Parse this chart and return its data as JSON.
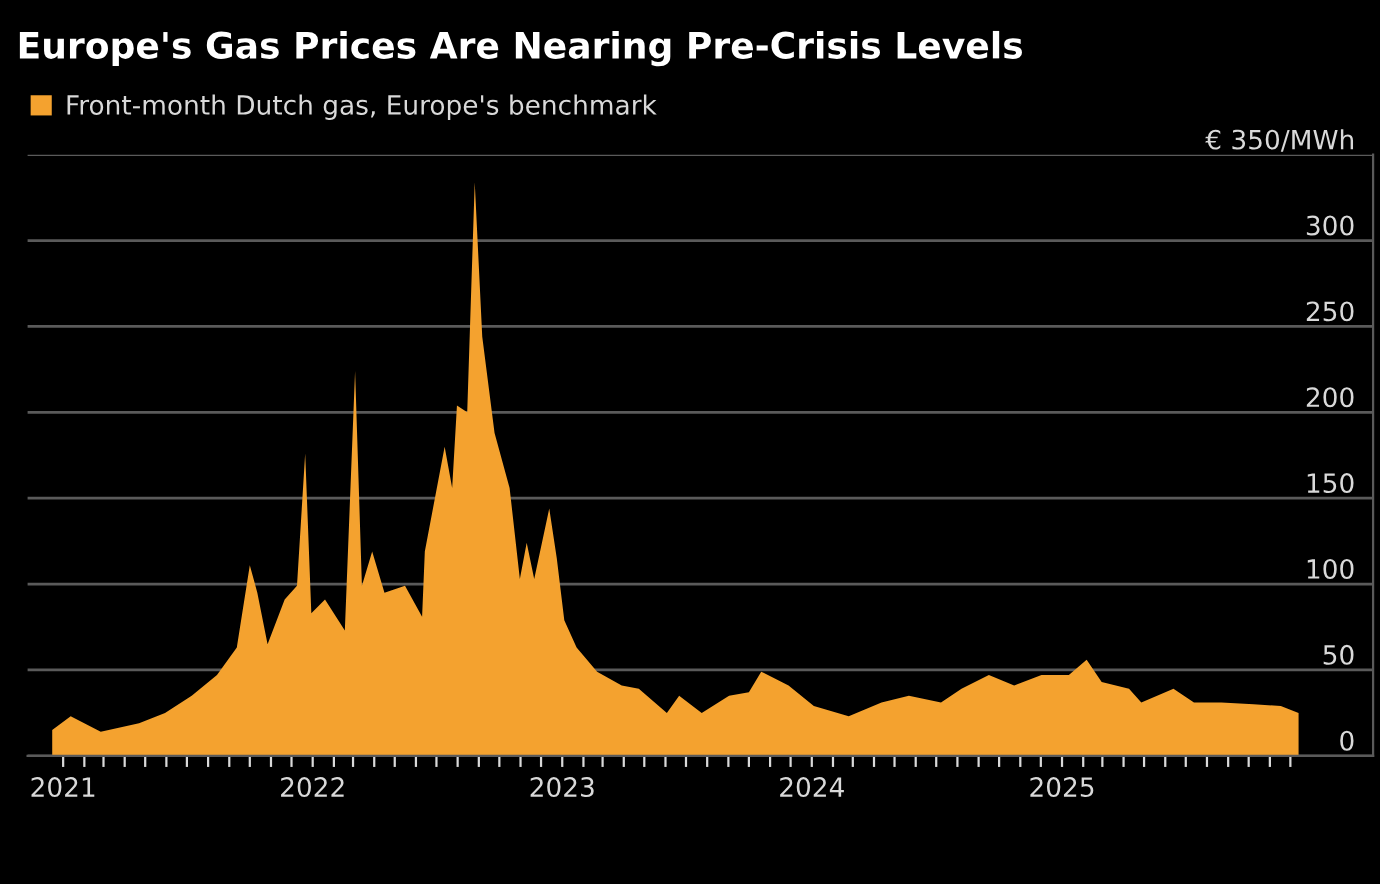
{
  "chart_data": {
    "type": "area",
    "title": "Europe's Gas Prices Are Nearing Pre-Crisis Levels",
    "series": [
      {
        "name": "Front-month Dutch gas, Europe's benchmark",
        "color": "#f4a22f",
        "x": [
          "2020-12-16",
          "2021-01-12",
          "2021-02-25",
          "2021-04-22",
          "2021-05-30",
          "2021-07-08",
          "2021-08-14",
          "2021-09-12",
          "2021-10-01",
          "2021-10-12",
          "2021-10-27",
          "2021-11-21",
          "2021-12-09",
          "2021-12-21",
          "2021-12-30",
          "2022-01-19",
          "2022-02-17",
          "2022-03-04",
          "2022-03-14",
          "2022-03-29",
          "2022-04-16",
          "2022-05-16",
          "2022-06-10",
          "2022-06-14",
          "2022-07-13",
          "2022-07-24",
          "2022-07-31",
          "2022-08-15",
          "2022-08-26",
          "2022-09-06",
          "2022-09-24",
          "2022-10-16",
          "2022-10-31",
          "2022-11-10",
          "2022-11-21",
          "2022-12-13",
          "2022-12-24",
          "2023-01-04",
          "2023-01-22",
          "2023-02-21",
          "2023-03-29",
          "2023-04-23",
          "2023-06-03",
          "2023-06-21",
          "2023-07-24",
          "2023-09-02",
          "2023-10-01",
          "2023-10-19",
          "2023-11-28",
          "2024-01-04",
          "2024-02-24",
          "2024-04-12",
          "2024-05-22",
          "2024-07-08",
          "2024-08-07",
          "2024-09-16",
          "2024-10-23",
          "2024-12-02",
          "2025-01-11",
          "2025-02-06",
          "2025-02-28",
          "2025-04-09",
          "2025-04-27",
          "2025-06-13",
          "2025-07-13",
          "2025-08-22",
          "2025-10-08",
          "2025-11-17",
          "2025-12-13"
        ],
        "values": [
          15,
          23,
          14,
          19,
          25,
          35,
          47,
          63,
          111,
          95,
          65,
          91,
          99,
          176,
          83,
          91,
          73,
          224,
          99,
          119,
          95,
          99,
          81,
          119,
          180,
          156,
          204,
          200,
          334,
          244,
          188,
          156,
          103,
          124,
          103,
          144,
          115,
          79,
          63,
          49,
          41,
          39,
          25,
          35,
          25,
          35,
          37,
          49,
          41,
          29,
          23,
          31,
          35,
          31,
          39,
          47,
          41,
          47,
          47,
          56,
          43,
          39,
          31,
          39,
          31,
          31,
          30,
          29,
          25
        ]
      }
    ],
    "xlim": [
      "2020-11-10",
      "2026-04-01"
    ],
    "xticks": [
      "2021",
      {
        "value": "2021-02",
        "label": null
      },
      {
        "value": "2021-03",
        "label": null
      },
      {
        "value": "2021-04",
        "label": null
      },
      {
        "value": "2021-05",
        "label": null
      },
      {
        "value": "2021-06",
        "label": null
      },
      {
        "value": "2021-07",
        "label": null
      },
      {
        "value": "2021-08",
        "label": null
      },
      {
        "value": "2021-09",
        "label": null
      },
      {
        "value": "2021-10",
        "label": null
      },
      {
        "value": "2021-11",
        "label": null
      },
      {
        "value": "2021-12",
        "label": null
      },
      "2022",
      {
        "value": "2022-02",
        "label": null
      },
      {
        "value": "2022-03",
        "label": null
      },
      {
        "value": "2022-04",
        "label": null
      },
      {
        "value": "2022-05",
        "label": null
      },
      {
        "value": "2022-06",
        "label": null
      },
      {
        "value": "2022-07",
        "label": null
      },
      {
        "value": "2022-08",
        "label": null
      },
      {
        "value": "2022-09",
        "label": null
      },
      {
        "value": "2022-10",
        "label": null
      },
      {
        "value": "2022-11",
        "label": null
      },
      {
        "value": "2022-12",
        "label": null
      },
      "2023",
      {
        "value": "2023-02",
        "label": null
      },
      {
        "value": "2023-03",
        "label": null
      },
      {
        "value": "2023-04",
        "label": null
      },
      {
        "value": "2023-05",
        "label": null
      },
      {
        "value": "2023-06",
        "label": null
      },
      {
        "value": "2023-07",
        "label": null
      },
      {
        "value": "2023-08",
        "label": null
      },
      {
        "value": "2023-09",
        "label": null
      },
      {
        "value": "2023-10",
        "label": null
      },
      {
        "value": "2023-11",
        "label": null
      },
      {
        "value": "2023-12",
        "label": null
      },
      "2024",
      {
        "value": "2024-02",
        "label": null
      },
      {
        "value": "2024-03",
        "label": null
      },
      {
        "value": "2024-04",
        "label": null
      },
      {
        "value": "2024-05",
        "label": null
      },
      {
        "value": "2024-06",
        "label": null
      },
      {
        "value": "2024-07",
        "label": null
      },
      {
        "value": "2024-08",
        "label": null
      },
      {
        "value": "2024-09",
        "label": null
      },
      {
        "value": "2024-10",
        "label": null
      },
      {
        "value": "2024-11",
        "label": null
      },
      {
        "value": "2024-12",
        "label": null
      },
      "2025",
      {
        "value": "2025-02",
        "label": null
      },
      {
        "value": "2025-03",
        "label": null
      },
      {
        "value": "2025-04",
        "label": null
      },
      {
        "value": "2025-05",
        "label": null
      },
      {
        "value": "2025-06",
        "label": null
      },
      {
        "value": "2025-07",
        "label": null
      },
      {
        "value": "2025-08",
        "label": null
      },
      {
        "value": "2025-09",
        "label": null
      },
      {
        "value": "2025-10",
        "label": null
      },
      {
        "value": "2025-11",
        "label": null
      },
      {
        "value": "2025-12",
        "label": null
      }
    ],
    "ylim": [
      0,
      350
    ],
    "yticks": [
      0,
      50,
      100,
      150,
      200,
      250,
      300,
      {
        "value": 350,
        "label": "€ 350/MWh"
      }
    ],
    "grid": "y",
    "legend": "top left"
  }
}
